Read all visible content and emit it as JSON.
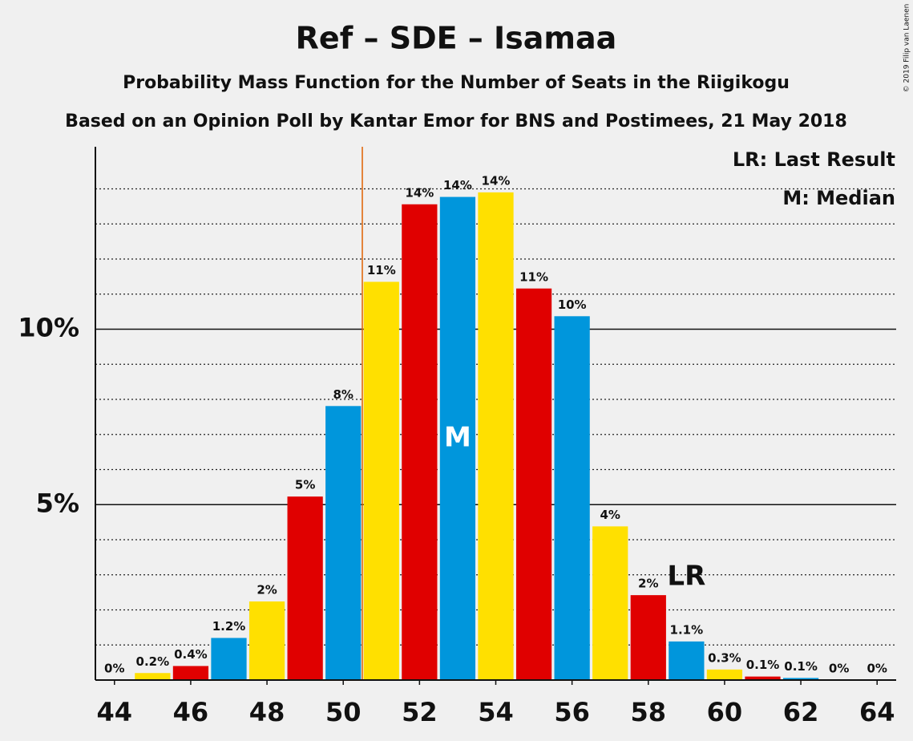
{
  "chart_data": {
    "type": "bar",
    "title": "Ref – SDE – Isamaa",
    "subtitle": "Probability Mass Function for the Number of Seats in the Riigikogu",
    "subtitle2": "Based on an Opinion Poll by Kantar Emor for BNS and Postimees, 21 May 2018",
    "credit": "© 2019 Filip van Laenen",
    "x": [
      44,
      45,
      46,
      47,
      48,
      49,
      50,
      51,
      52,
      53,
      54,
      55,
      56,
      57,
      58,
      59,
      60,
      61,
      62,
      63,
      64
    ],
    "values": [
      0,
      0.2,
      0.4,
      1.2,
      2.24,
      5.23,
      7.81,
      11.35,
      13.56,
      13.77,
      13.9,
      11.16,
      10.37,
      4.38,
      2.42,
      1.1,
      0.3,
      0.1,
      0.06,
      0,
      0
    ],
    "value_labels": [
      "0%",
      "0.2%",
      "0.4%",
      "1.2%",
      "2%",
      "5%",
      "8%",
      "11%",
      "14%",
      "14%",
      "14%",
      "11%",
      "10%",
      "4%",
      "2%",
      "1.1%",
      "0.3%",
      "0.1%",
      "0.1%",
      "0%",
      "0%"
    ],
    "colors": [
      "#0096dc",
      "#ffe000",
      "#e00000",
      "#0096dc",
      "#ffe000",
      "#e00000",
      "#0096dc",
      "#ffe000",
      "#e00000",
      "#0096dc",
      "#ffe000",
      "#e00000",
      "#0096dc",
      "#ffe000",
      "#e00000",
      "#0096dc",
      "#ffe000",
      "#e00000",
      "#0096dc",
      "#ffe000",
      "#e00000"
    ],
    "xlim": [
      43.5,
      64.5
    ],
    "xticks": [
      44,
      46,
      48,
      50,
      52,
      54,
      56,
      58,
      60,
      62,
      64
    ],
    "ylim": [
      0,
      15.2
    ],
    "yticks": [
      {
        "value": 5,
        "label": "5%"
      },
      {
        "value": 10,
        "label": "10%"
      }
    ],
    "minor_yticks": [
      1,
      2,
      3,
      4,
      6,
      7,
      8,
      9,
      11,
      12,
      13,
      14
    ],
    "majority_line": 50.5,
    "majority_color": "#e06000",
    "median": 53,
    "median_label": "M",
    "last_result": 59,
    "last_result_label": "LR",
    "legend": [
      "LR: Last Result",
      "M: Median"
    ]
  }
}
